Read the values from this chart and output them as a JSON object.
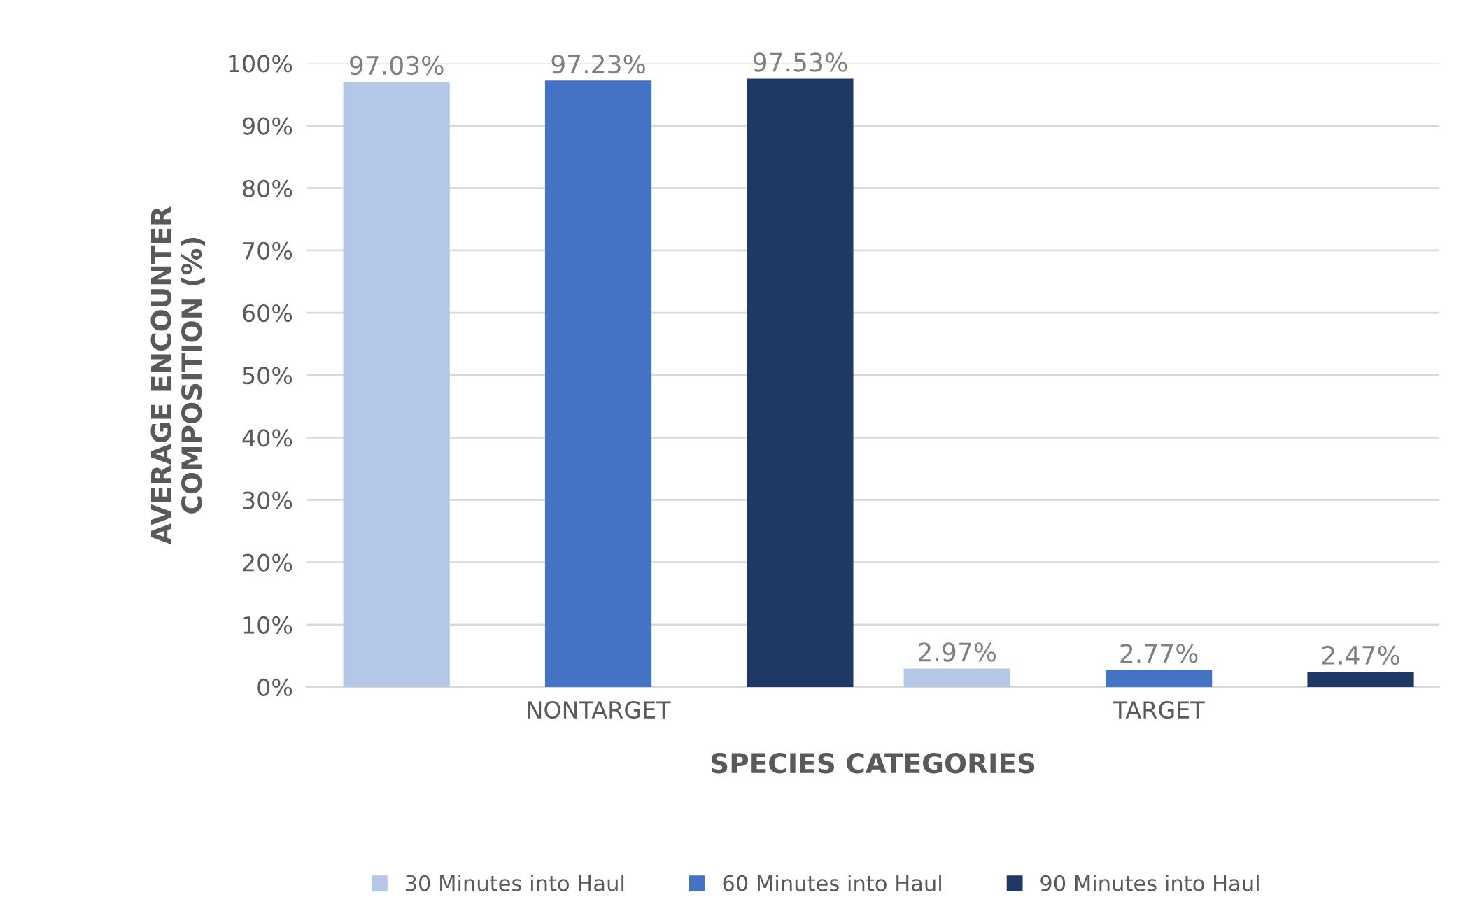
{
  "chart_data": {
    "type": "bar",
    "xlabel": "SPECIES CATEGORIES",
    "ylabel": "AVERAGE ENCOUNTER\nCOMPOSITION (%)",
    "categories": [
      "NONTARGET",
      "TARGET"
    ],
    "series": [
      {
        "name": "30 Minutes into Haul",
        "color": "#b4c7e7",
        "values": [
          97.03,
          2.97
        ],
        "value_labels": [
          "97.03%",
          "2.97%"
        ]
      },
      {
        "name": "60 Minutes into Haul",
        "color": "#4472c4",
        "values": [
          97.23,
          2.77
        ],
        "value_labels": [
          "97.23%",
          "2.77%"
        ]
      },
      {
        "name": "90 Minutes into Haul",
        "color": "#203864",
        "values": [
          97.53,
          2.47
        ],
        "value_labels": [
          "97.53%",
          "2.47%"
        ]
      }
    ],
    "ylim": [
      0,
      100
    ],
    "yticks": [
      {
        "value": 0,
        "label": "0%"
      },
      {
        "value": 10,
        "label": "10%"
      },
      {
        "value": 20,
        "label": "20%"
      },
      {
        "value": 30,
        "label": "30%"
      },
      {
        "value": 40,
        "label": "40%"
      },
      {
        "value": 50,
        "label": "50%"
      },
      {
        "value": 60,
        "label": "60%"
      },
      {
        "value": 70,
        "label": "70%"
      },
      {
        "value": 80,
        "label": "80%"
      },
      {
        "value": 90,
        "label": "90%"
      },
      {
        "value": 100,
        "label": "100%"
      }
    ],
    "grid": "y",
    "legend": "bottom"
  }
}
